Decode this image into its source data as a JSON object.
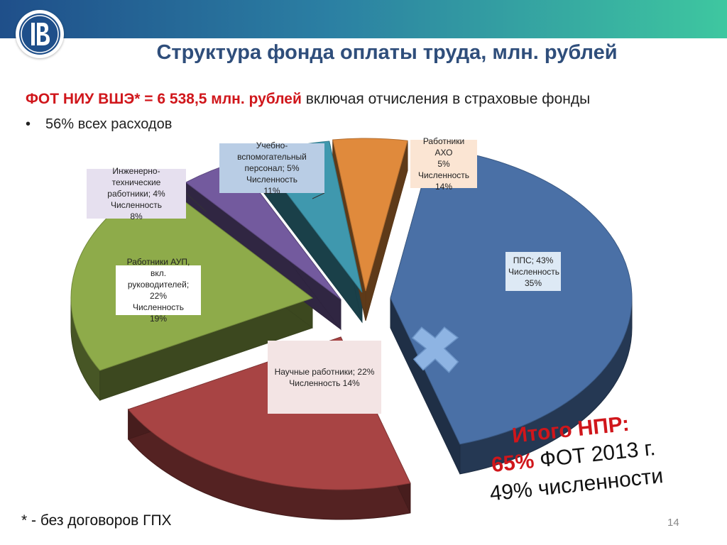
{
  "slide": {
    "title": "Структура фонда оплаты труда, млн. рублей",
    "fot_red": "ФОТ НИУ ВШЭ* = 6 538,5 млн. рублей",
    "fot_rest": " включая отчисления в страховые фонды",
    "bullet_marker": "•",
    "bullet": "56% всех расходов",
    "footnote": "* - без договоров ГПХ",
    "page_number": "14",
    "total": {
      "line1": "Итого НПР:",
      "line2_pct": "65%",
      "line2_rest": " ФОТ 2013 г.",
      "line3": "49% численности"
    },
    "logo_icon": "hse-logo-icon",
    "plus_icon": "plus-icon"
  },
  "chart_data": {
    "type": "pie",
    "title": "Структура фонда оплаты труда, млн. рублей",
    "slices": [
      {
        "name": "ППС",
        "value": 43,
        "headcount": 35,
        "color": "#4a70a6",
        "label_lines": [
          "ППС; 43%",
          "Численность",
          "35%"
        ]
      },
      {
        "name": "Научные работники",
        "value": 22,
        "headcount": 14,
        "color": "#a84444",
        "label_lines": [
          "Научные работники; 22%",
          "Численность 14%"
        ]
      },
      {
        "name": "Работники АУП, вкл. руководителей",
        "value": 22,
        "headcount": 19,
        "color": "#8eab4a",
        "label_lines": [
          "Работники АУП, вкл.",
          "руководителей; 22%",
          "Численность",
          "19%"
        ]
      },
      {
        "name": "Инженерно-технические работники",
        "value": 4,
        "headcount": 8,
        "color": "#735a9e",
        "label_lines": [
          "Инженерно-технические",
          "работники; 4%",
          "Численность",
          "8%"
        ]
      },
      {
        "name": "Учебно-вспомогательный персонал",
        "value": 5,
        "headcount": 11,
        "color": "#3f98ae",
        "label_lines": [
          "Учебно-вспомогательный",
          "персонал; 5%",
          "Численность",
          "11%"
        ]
      },
      {
        "name": "Работники АХО",
        "value": 5,
        "headcount": 14,
        "color": "#e08a3c",
        "label_lines": [
          "Работники АХО",
          "5%",
          "Численность",
          "14%"
        ]
      }
    ]
  }
}
